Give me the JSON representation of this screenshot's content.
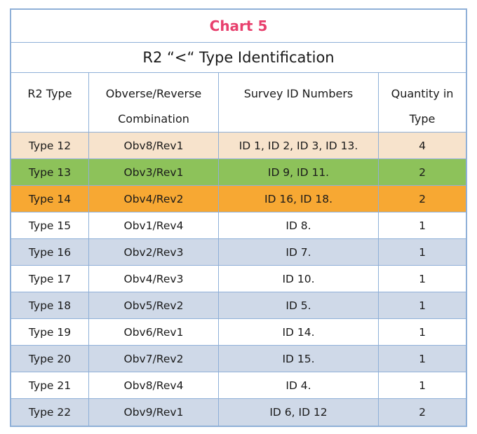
{
  "chart_title": "Chart 5",
  "subtitle": "R2 “<“ Type Identification",
  "headers": {
    "type": "R2 Type",
    "combination_line1": "Obverse/Reverse",
    "combination_line2": "Combination",
    "survey": "Survey ID Numbers",
    "quantity_line1": "Quantity in",
    "quantity_line2": "Type"
  },
  "row_colors": {
    "tan": "#f7e3cc",
    "green": "#8dc25a",
    "orange": "#f7a833",
    "white": "#ffffff",
    "blue": "#cfd9e8",
    "title": "#e8416e",
    "border": "#8fb0d8"
  },
  "rows": [
    {
      "type": "Type 12",
      "combo": "Obv8/Rev1",
      "ids": "ID 1, ID 2, ID 3, ID 13.",
      "qty": "4",
      "color": "tan"
    },
    {
      "type": "Type 13",
      "combo": "Obv3/Rev1",
      "ids": "ID 9, ID 11.",
      "qty": "2",
      "color": "green"
    },
    {
      "type": "Type 14",
      "combo": "Obv4/Rev2",
      "ids": "ID 16, ID 18.",
      "qty": "2",
      "color": "orange"
    },
    {
      "type": "Type 15",
      "combo": "Obv1/Rev4",
      "ids": "ID 8.",
      "qty": "1",
      "color": "white"
    },
    {
      "type": "Type 16",
      "combo": "Obv2/Rev3",
      "ids": "ID 7.",
      "qty": "1",
      "color": "blue"
    },
    {
      "type": "Type 17",
      "combo": "Obv4/Rev3",
      "ids": "ID 10.",
      "qty": "1",
      "color": "white"
    },
    {
      "type": "Type 18",
      "combo": "Obv5/Rev2",
      "ids": "ID 5.",
      "qty": "1",
      "color": "blue"
    },
    {
      "type": "Type 19",
      "combo": "Obv6/Rev1",
      "ids": "ID 14.",
      "qty": "1",
      "color": "white"
    },
    {
      "type": "Type 20",
      "combo": "Obv7/Rev2",
      "ids": "ID 15.",
      "qty": "1",
      "color": "blue"
    },
    {
      "type": "Type 21",
      "combo": "Obv8/Rev4",
      "ids": "ID 4.",
      "qty": "1",
      "color": "white"
    },
    {
      "type": "Type 22",
      "combo": "Obv9/Rev1",
      "ids": "ID 6, ID 12",
      "qty": "2",
      "color": "blue"
    }
  ]
}
